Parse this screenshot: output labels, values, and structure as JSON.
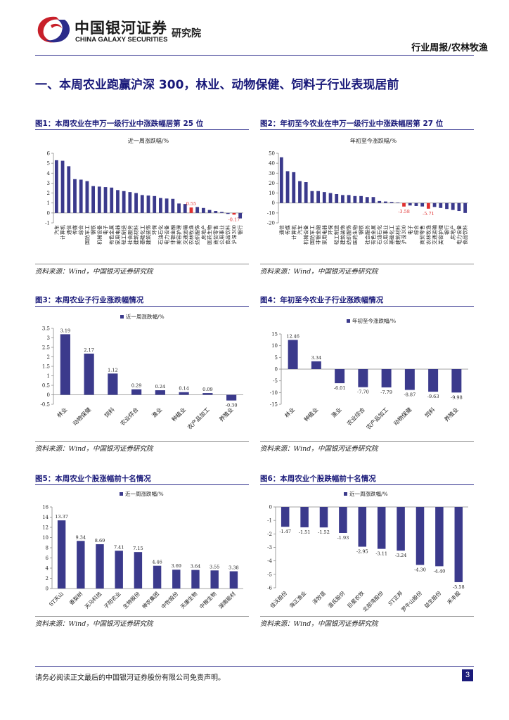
{
  "header": {
    "logo_cn": "中国银河证券",
    "logo_en": "CHINA GALAXY SECURITIES",
    "institute": "研究院",
    "report_type": "行业周报/农林牧渔"
  },
  "section_title": "一、本周农业跑赢沪深 300，林业、动物保健、饲料子行业表现居前",
  "figures": [
    {
      "title": "图1：本周农业在申万一级行业中涨跌幅居第 25 位",
      "source": "资料来源：Wind，中国银河证券研究院"
    },
    {
      "title": "图2：年初至今农业在申万一级行业中涨跌幅居第 27 位",
      "source": "资料来源：Wind，中国银河证券研究院"
    },
    {
      "title": "图3：本周农业子行业涨跌幅情况",
      "source": "资料来源：Wind，中国银河证券研究院"
    },
    {
      "title": "图4：年初至今农业子行业涨跌幅情况",
      "source": "资料来源：Wind，中国银河证券研究院"
    },
    {
      "title": "图5：本周农业个股涨幅前十名情况",
      "source": "资料来源：Wind，中国银河证券研究院"
    },
    {
      "title": "图6：本周农业个股跌幅前十名情况",
      "source": "资料来源：Wind，中国银河证券研究院"
    }
  ],
  "footer": {
    "disclaimer": "请务必阅读正文最后的中国银河证券股份有限公司免责声明。",
    "page_number": "3"
  },
  "colors": {
    "bar": "#3b3a8c",
    "highlight": "#e03030",
    "title": "#1a1a7a"
  },
  "chart_data": [
    {
      "type": "bar",
      "title": "近一周涨跌幅/%",
      "categories": [
        "汽车",
        "计算机",
        "通信",
        "传媒",
        "综合",
        "国防军工",
        "钢铁",
        "机械设备",
        "电子",
        "有色金属",
        "家用电器",
        "轻工制造",
        "社会服务",
        "建筑材料",
        "基础化工",
        "建筑装饰",
        "环保",
        "石油石化",
        "电力设备",
        "非银金融",
        "美容护理",
        "交通运输",
        "农林牧渔",
        "纺织服饰",
        "房地产",
        "医药生物",
        "商贸零售",
        "公用事业",
        "食品饮料",
        "沪深300",
        "银行"
      ],
      "values": [
        5.3,
        5.25,
        4.7,
        3.4,
        3.35,
        3.2,
        2.7,
        2.65,
        2.6,
        2.55,
        2.3,
        2.2,
        2.1,
        2.0,
        1.8,
        1.75,
        1.7,
        1.5,
        1.45,
        1.42,
        0.95,
        0.9,
        0.55,
        0.6,
        0.5,
        0.3,
        0.2,
        0.1,
        -0.1,
        -0.17,
        -0.55
      ],
      "highlight": [
        "农林牧渔",
        "沪深300"
      ],
      "value_labels": {
        "农林牧渔": "0.55",
        "沪深300": "-0.17"
      },
      "ylim": [
        -1,
        6
      ],
      "yticks": [
        -1,
        0,
        1,
        2,
        3,
        4,
        5,
        6
      ]
    },
    {
      "type": "bar",
      "title": "年初至今涨跌幅/%",
      "categories": [
        "通信",
        "传媒",
        "计算机",
        "汽车",
        "机械设备",
        "国防军工",
        "非银金融",
        "家用电器",
        "环保",
        "轻工制造",
        "建筑装饰",
        "纺织服饰",
        "医药生物",
        "钢铁",
        "社会服务",
        "有色金属",
        "石油石化",
        "公用事业",
        "基础化工",
        "建筑材料",
        "沪深300",
        "电子",
        "综合",
        "商贸零售",
        "农林牧渔",
        "交通运输",
        "美容护理",
        "银行",
        "房地产",
        "电力设备",
        "食品饮料"
      ],
      "values": [
        46,
        32,
        31,
        22,
        21,
        12,
        12,
        11,
        10,
        9,
        8,
        8,
        7,
        7,
        6,
        6,
        2,
        1.5,
        1,
        0.5,
        -3.58,
        -2.5,
        -3,
        -3.5,
        -5.71,
        -4,
        -5,
        -6,
        -7,
        -8,
        -10
      ],
      "highlight": [
        "沪深300",
        "农林牧渔"
      ],
      "value_labels": {
        "沪深300": "-3.58",
        "农林牧渔": "-5.71"
      },
      "ylim": [
        -20,
        50
      ],
      "yticks": [
        -20,
        -10,
        0,
        10,
        20,
        30,
        40,
        50
      ]
    },
    {
      "type": "bar",
      "legend": "近一周涨跌幅/%",
      "categories": [
        "林业",
        "动物保健",
        "饲料",
        "农业综合",
        "渔业",
        "种植业",
        "农产品加工",
        "养殖业"
      ],
      "values": [
        3.19,
        2.17,
        1.12,
        0.29,
        0.24,
        0.14,
        0.09,
        -0.3
      ],
      "labels": [
        "3.19",
        "2.17",
        "1.12",
        "0.29",
        "0.24",
        "0.14",
        "0.09",
        "-0.30"
      ],
      "ylim": [
        -0.5,
        3.5
      ],
      "yticks": [
        -0.5,
        0,
        0.5,
        1,
        1.5,
        2,
        2.5,
        3,
        3.5
      ]
    },
    {
      "type": "bar",
      "legend": "年初至今涨跌幅/%",
      "categories": [
        "林业",
        "种植业",
        "渔业",
        "农业综合",
        "农产品加工",
        "动物保健",
        "饲料",
        "养殖业"
      ],
      "values": [
        12.46,
        3.34,
        -6.01,
        -7.7,
        -7.79,
        -8.87,
        -9.63,
        -9.98
      ],
      "labels": [
        "12.46",
        "3.34",
        "-6.01",
        "-7.70",
        "-7.79",
        "-8.87",
        "-9.63",
        "-9.98"
      ],
      "ylim": [
        -15,
        15
      ],
      "yticks": [
        -15,
        -10,
        -5,
        0,
        5,
        10,
        15
      ]
    },
    {
      "type": "bar",
      "legend": "近一周涨跌幅/%",
      "categories": [
        "ST天山",
        "香梨树",
        "天马科技",
        "子阳农业",
        "生物股份",
        "神农集团",
        "中牧股份",
        "天康生物",
        "中粮生物",
        "湖南能材"
      ],
      "values": [
        13.37,
        9.34,
        8.69,
        7.41,
        7.15,
        4.46,
        3.69,
        3.64,
        3.55,
        3.38
      ],
      "labels": [
        "13.37",
        "9.34",
        "8.69",
        "7.41",
        "7.15",
        "4.46",
        "3.69",
        "3.64",
        "3.55",
        "3.38"
      ],
      "ylim": [
        0,
        16
      ],
      "yticks": [
        0,
        2,
        4,
        6,
        8,
        10,
        12,
        14,
        16
      ]
    },
    {
      "type": "bar",
      "legend": "近一周涨跌幅/%",
      "categories": [
        "佳沃股份",
        "海正渔业",
        "泽牧苗",
        "温氏股份",
        "巨星农牧",
        "北部湾股份",
        "ST正邦",
        "罗牛山股份",
        "益生股份",
        "禾丰股"
      ],
      "values": [
        -1.47,
        -1.51,
        -1.52,
        -1.93,
        -2.95,
        -3.11,
        -3.24,
        -4.3,
        -4.4,
        -5.58
      ],
      "labels": [
        "-1.47",
        "-1.51",
        "-1.52",
        "-1.93",
        "-2.95",
        "-3.11",
        "-3.24",
        "-4.30",
        "-4.40",
        "-5.58"
      ],
      "ylim": [
        -6,
        0
      ],
      "yticks": [
        -6,
        -5,
        -4,
        -3,
        -2,
        -1,
        0
      ]
    }
  ]
}
